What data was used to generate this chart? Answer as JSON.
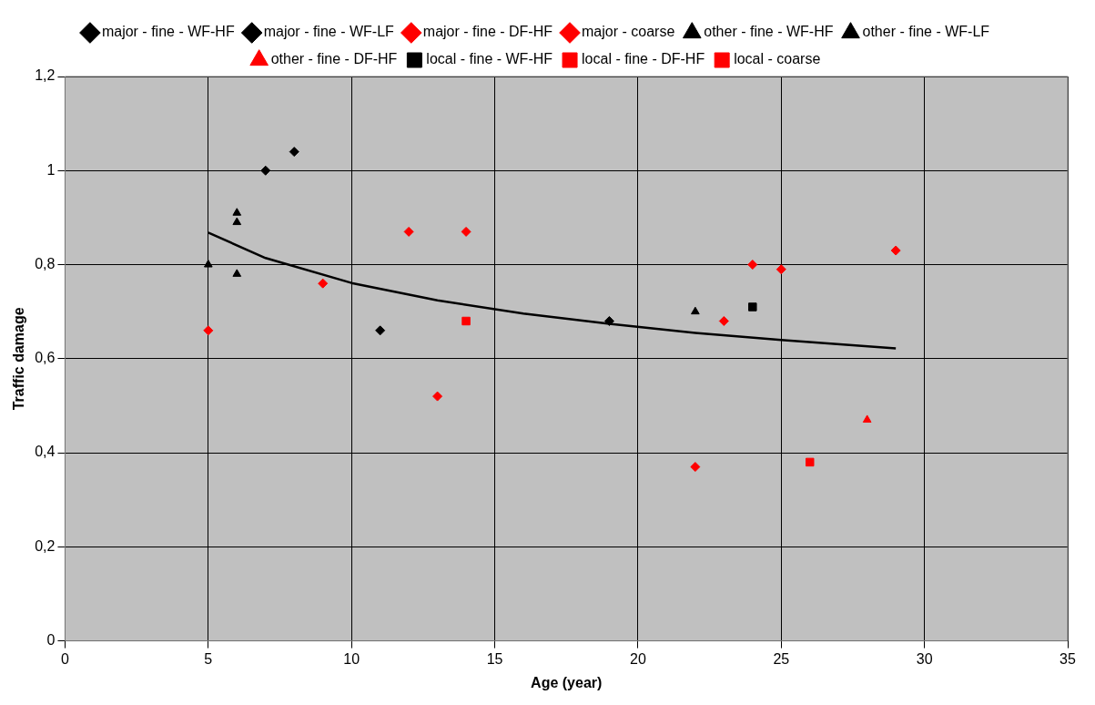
{
  "chart_data": {
    "type": "scatter",
    "xlabel": "Age (year)",
    "ylabel": "Traffic damage",
    "xlim": [
      0,
      35
    ],
    "xticks": [
      0,
      5,
      10,
      15,
      20,
      25,
      30,
      35
    ],
    "ylim": [
      0,
      1.2
    ],
    "yticks": [
      {
        "value": 0,
        "label": "0"
      },
      {
        "value": 0.2,
        "label": "0,2"
      },
      {
        "value": 0.4,
        "label": "0,4"
      },
      {
        "value": 0.6,
        "label": "0,6"
      },
      {
        "value": 0.8,
        "label": "0,8"
      },
      {
        "value": 1,
        "label": "1"
      },
      {
        "value": 1.2,
        "label": "1,2"
      }
    ],
    "grid": true,
    "legend": "top",
    "series": [
      {
        "name": "major - fine - WF-HF",
        "color": "#000000",
        "marker": "diamond",
        "x": [
          7,
          8,
          11
        ],
        "values": [
          1.0,
          1.04,
          0.66
        ]
      },
      {
        "name": "major - fine - WF-LF",
        "color": "#000000",
        "marker": "diamond",
        "x": [
          19
        ],
        "values": [
          0.68
        ]
      },
      {
        "name": "major - fine - DF-HF",
        "color": "#ff0000",
        "marker": "diamond",
        "x": [
          5,
          13,
          22
        ],
        "values": [
          0.66,
          0.52,
          0.37
        ]
      },
      {
        "name": "major - coarse",
        "color": "#ff0000",
        "marker": "diamond",
        "x": [
          9,
          12,
          14,
          23,
          24,
          25,
          29
        ],
        "values": [
          0.76,
          0.87,
          0.87,
          0.68,
          0.8,
          0.79,
          0.83
        ]
      },
      {
        "name": "other - fine - WF-HF",
        "color": "#000000",
        "marker": "triangle",
        "x": [
          5,
          6,
          6,
          6
        ],
        "values": [
          0.8,
          0.91,
          0.89,
          0.78
        ]
      },
      {
        "name": "other - fine - WF-LF",
        "color": "#000000",
        "marker": "triangle",
        "x": [
          22
        ],
        "values": [
          0.7
        ]
      },
      {
        "name": "other - fine - DF-HF",
        "color": "#ff0000",
        "marker": "triangle",
        "x": [
          28
        ],
        "values": [
          0.47
        ]
      },
      {
        "name": "local - fine - WF-HF",
        "color": "#000000",
        "marker": "square",
        "x": [
          24
        ],
        "values": [
          0.71
        ]
      },
      {
        "name": "local - fine - DF-HF",
        "color": "#ff0000",
        "marker": "square",
        "x": [
          26
        ],
        "values": [
          0.38
        ]
      },
      {
        "name": "local - coarse",
        "color": "#ff0000",
        "marker": "square",
        "x": [
          14
        ],
        "values": [
          0.68
        ]
      },
      {
        "type": "line",
        "color": "#000000",
        "marker": "none",
        "x": [
          5,
          7,
          10,
          13,
          16,
          19,
          22,
          25,
          29
        ],
        "values": [
          0.868,
          0.814,
          0.761,
          0.724,
          0.696,
          0.674,
          0.655,
          0.64,
          0.622
        ]
      }
    ]
  }
}
